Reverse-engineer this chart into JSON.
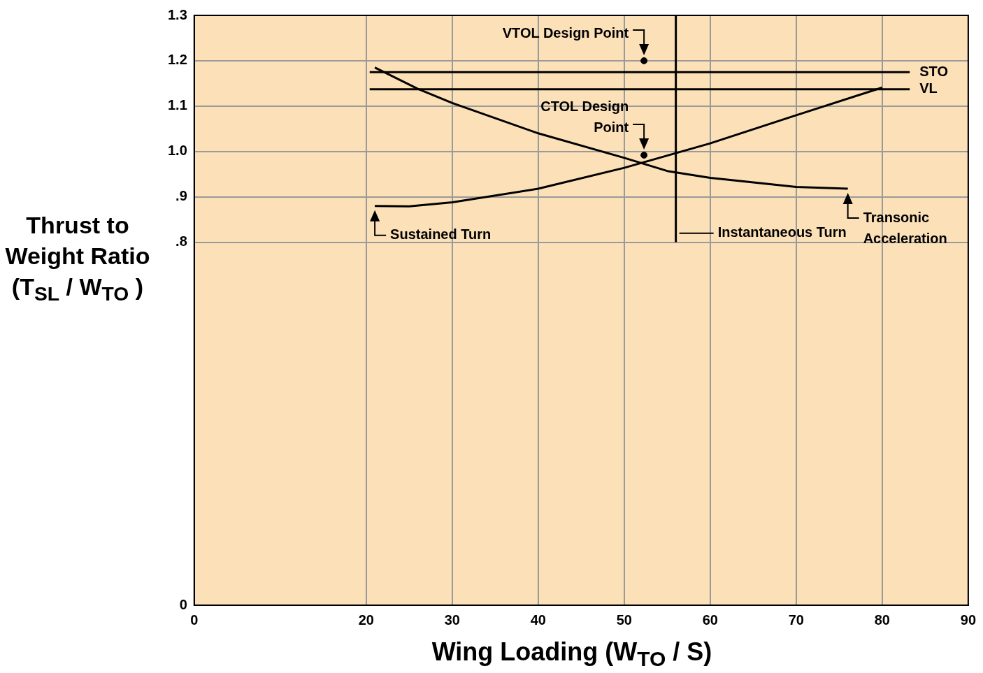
{
  "chart_data": {
    "type": "line",
    "xlabel": "Wing Loading  (W$_{TO}$ / S)",
    "ylabel": "Thrust to Weight Ratio (T$_{SL}$ / W$_{TO}$ )",
    "xlim": [
      0,
      90
    ],
    "xticks": [
      0,
      20,
      30,
      40,
      50,
      60,
      70,
      80,
      90
    ],
    "ylim": [
      0,
      1.3
    ],
    "yticks": [
      0,
      {
        "value": 0.8,
        "label": ".8"
      },
      {
        "value": 0.9,
        "label": ".9"
      },
      {
        "value": 1.0,
        "label": "1.0"
      },
      {
        "value": 1.1,
        "label": "1.1"
      },
      1.2,
      1.3
    ],
    "grid": true,
    "marker": "none",
    "line_style": "solid",
    "series": [
      {
        "name": "STO",
        "color": "#000000",
        "x": [
          20.4,
          83.2
        ],
        "values": [
          1.175,
          1.175
        ]
      },
      {
        "name": "VL",
        "color": "#000000",
        "x": [
          20.4,
          83.2
        ],
        "values": [
          1.137,
          1.137
        ]
      },
      {
        "color": "#000000",
        "x": [
          21,
          25,
          30,
          40,
          50,
          60,
          70,
          80
        ],
        "values": [
          0.88,
          0.879,
          0.888,
          0.918,
          0.964,
          1.018,
          1.08,
          1.141
        ]
      },
      {
        "color": "#000000",
        "x": [
          21,
          26,
          30,
          40,
          50,
          55,
          60,
          70,
          76
        ],
        "values": [
          1.185,
          1.138,
          1.107,
          1.04,
          0.986,
          0.957,
          0.942,
          0.922,
          0.918
        ]
      },
      {
        "color": "#000000",
        "x": [
          56,
          56
        ],
        "values": [
          0.8,
          1.3
        ]
      },
      {
        "type": "scatter",
        "color": "#000000",
        "marker": "circle",
        "x": [
          52.3,
          52.3
        ],
        "values": [
          1.2,
          0.992
        ]
      }
    ],
    "annotations": [
      {
        "text": "VTOL Design Point",
        "x": 52.3,
        "y": 1.2
      },
      {
        "text": "CTOL Design Point",
        "x": 52.3,
        "y": 0.992
      },
      {
        "text": "Transonic Acceleration",
        "x": 76,
        "y": 0.918
      },
      {
        "text": "Sustained Turn",
        "x": 21,
        "y": 0.88
      },
      {
        "text": "Instantaneous Turn",
        "x": 56,
        "y": 0.82
      }
    ]
  }
}
